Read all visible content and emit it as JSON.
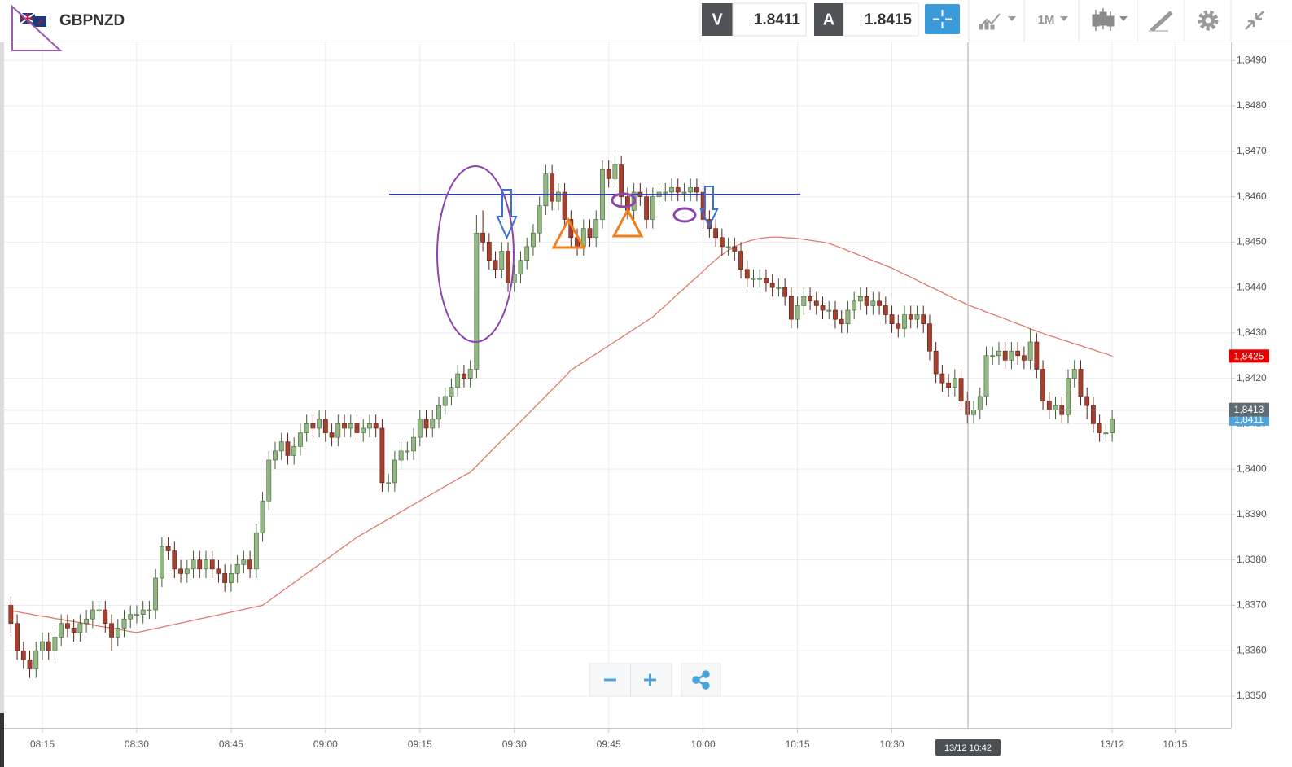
{
  "header": {
    "symbol": "GBPNZD",
    "bid_label": "V",
    "bid": "1.8411",
    "ask_label": "A",
    "ask": "1.8415",
    "timeframe": "1M"
  },
  "chart_data": {
    "type": "candlestick",
    "categories": [
      null,
      null,
      null,
      null,
      null,
      "08:15",
      null,
      null,
      null,
      null,
      null,
      null,
      null,
      null,
      null,
      null,
      null,
      null,
      null,
      null,
      "08:30",
      null,
      null,
      null,
      null,
      null,
      null,
      null,
      null,
      null,
      null,
      null,
      null,
      null,
      null,
      "08:45",
      null,
      null,
      null,
      null,
      null,
      null,
      null,
      null,
      null,
      null,
      null,
      null,
      null,
      null,
      "09:00",
      null,
      null,
      null,
      null,
      null,
      null,
      null,
      null,
      null,
      null,
      null,
      null,
      null,
      null,
      "09:15",
      null,
      null,
      null,
      null,
      null,
      null,
      null,
      null,
      null,
      null,
      null,
      null,
      null,
      null,
      "09:30",
      null,
      null,
      null,
      null,
      null,
      null,
      null,
      null,
      null,
      null,
      null,
      null,
      null,
      null,
      "09:45",
      null,
      null,
      null,
      null,
      null,
      null,
      null,
      null,
      null,
      null,
      null,
      null,
      null,
      null,
      "10:00",
      null,
      null,
      null,
      null,
      null,
      null,
      null,
      null,
      null,
      null,
      null,
      null,
      null,
      null,
      "10:15",
      null,
      null,
      null,
      null,
      null,
      null,
      null,
      null,
      null,
      null,
      null,
      null,
      null,
      null,
      "10:30",
      null,
      null,
      null,
      null,
      null,
      null,
      null,
      null,
      null,
      null,
      null,
      null,
      null,
      null,
      null,
      null,
      null,
      null,
      null,
      null,
      null,
      null,
      null,
      null,
      null,
      null,
      null,
      null,
      null,
      null,
      null,
      null,
      null,
      null,
      "13/12",
      null,
      null,
      null,
      null,
      null,
      null,
      null,
      null,
      null,
      "10:15"
    ],
    "candles": {
      "up_color": "#93b883",
      "down_color": "#a4402f",
      "last_color": "#4fa3d9",
      "last_label": "1,8411",
      "open": [
        1.837,
        1.8366,
        1.836,
        1.8358,
        1.8356,
        1.836,
        1.8362,
        1.836,
        1.8363,
        1.8366,
        1.8365,
        1.8364,
        1.8366,
        1.8367,
        1.8369,
        1.8369,
        1.8366,
        1.8363,
        1.8365,
        1.8367,
        1.8368,
        1.8368,
        1.8369,
        1.8369,
        1.8376,
        1.8383,
        1.8382,
        1.8378,
        1.8377,
        1.8378,
        1.838,
        1.8378,
        1.838,
        1.8378,
        1.8377,
        1.8375,
        1.8377,
        1.8379,
        1.838,
        1.8378,
        1.8386,
        1.8393,
        1.8402,
        1.8404,
        1.8406,
        1.8403,
        1.8405,
        1.8408,
        1.841,
        1.8409,
        1.8411,
        1.8408,
        1.8407,
        1.841,
        1.8409,
        1.841,
        1.8408,
        1.8409,
        1.841,
        1.8409,
        1.8397,
        1.8397,
        1.8402,
        1.8404,
        1.8404,
        1.8407,
        1.8411,
        1.8409,
        1.8411,
        1.8414,
        1.8416,
        1.8418,
        1.8421,
        1.842,
        1.8422,
        1.8452,
        1.845,
        1.8446,
        1.8444,
        1.8448,
        1.8441,
        1.8443,
        1.8446,
        1.8449,
        1.8452,
        1.8458,
        1.8465,
        1.8459,
        1.8461,
        1.8455,
        1.8451,
        1.8449,
        1.8453,
        1.8451,
        1.8455,
        1.8466,
        1.8464,
        1.8467,
        1.846,
        1.8457,
        1.8461,
        1.846,
        1.8455,
        1.846,
        1.8461,
        1.8461,
        1.8462,
        1.8461,
        1.8461,
        1.8462,
        1.8461,
        1.8455,
        1.8453,
        1.8451,
        1.8449,
        1.8449,
        1.8448,
        1.8444,
        1.8442,
        1.8442,
        1.8442,
        1.8441,
        1.844,
        1.844,
        1.8438,
        1.8433,
        1.8436,
        1.8438,
        1.8437,
        1.8436,
        1.8435,
        1.8435,
        1.8433,
        1.8432,
        1.8435,
        1.8437,
        1.8438,
        1.8436,
        1.8437,
        1.8436,
        1.8434,
        1.8432,
        1.8431,
        1.8434,
        1.8433,
        1.8434,
        1.8432,
        1.8426,
        1.8421,
        1.8419,
        1.8418,
        1.842,
        1.8415,
        1.8412,
        1.8413,
        1.8416,
        1.8425,
        1.8425,
        1.8426,
        1.8424,
        1.8426,
        1.8425,
        1.8424,
        1.8428,
        1.8422,
        1.8415,
        1.8413,
        1.8414,
        1.8412,
        1.842,
        1.8422,
        1.8416,
        1.8414,
        1.841,
        1.8408,
        1.8408,
        null,
        null,
        null,
        null,
        null,
        null,
        null,
        null,
        null,
        null
      ],
      "high": [
        1.8372,
        1.8368,
        1.8362,
        1.836,
        1.8362,
        1.8364,
        1.8364,
        1.8365,
        1.8368,
        1.8368,
        1.8367,
        1.8368,
        1.8369,
        1.8371,
        1.8371,
        1.8371,
        1.8368,
        1.8367,
        1.8369,
        1.837,
        1.837,
        1.8371,
        1.8371,
        1.8378,
        1.8385,
        1.8385,
        1.8384,
        1.838,
        1.838,
        1.8382,
        1.8382,
        1.8382,
        1.8382,
        1.838,
        1.8379,
        1.8379,
        1.8381,
        1.8382,
        1.8382,
        1.8388,
        1.8395,
        1.8404,
        1.8406,
        1.8408,
        1.8408,
        1.8407,
        1.841,
        1.8412,
        1.8412,
        1.8413,
        1.8413,
        1.841,
        1.8412,
        1.8412,
        1.8412,
        1.8412,
        1.8411,
        1.8412,
        1.8412,
        1.8411,
        1.8399,
        1.8404,
        1.8406,
        1.8406,
        1.8409,
        1.8413,
        1.8413,
        1.8413,
        1.8416,
        1.8418,
        1.842,
        1.8423,
        1.8423,
        1.8424,
        1.8456,
        1.8457,
        1.8452,
        1.8448,
        1.845,
        1.845,
        1.8445,
        1.8448,
        1.8451,
        1.8454,
        1.846,
        1.8467,
        1.8467,
        1.8463,
        1.8463,
        1.8457,
        1.8453,
        1.8455,
        1.8455,
        1.8457,
        1.8468,
        1.8468,
        1.8469,
        1.8469,
        1.8462,
        1.8463,
        1.8463,
        1.8462,
        1.8462,
        1.8463,
        1.8463,
        1.8464,
        1.8464,
        1.8463,
        1.8464,
        1.8464,
        1.8463,
        1.8457,
        1.8455,
        1.8453,
        1.8451,
        1.8451,
        1.845,
        1.8446,
        1.8444,
        1.8444,
        1.8444,
        1.8443,
        1.8442,
        1.8442,
        1.844,
        1.8438,
        1.844,
        1.844,
        1.8439,
        1.8438,
        1.8437,
        1.8437,
        1.8435,
        1.8437,
        1.8439,
        1.844,
        1.844,
        1.8439,
        1.8439,
        1.8438,
        1.8436,
        1.8434,
        1.8436,
        1.8436,
        1.8436,
        1.8436,
        1.8434,
        1.8428,
        1.8423,
        1.8421,
        1.8422,
        1.8422,
        1.8417,
        1.8415,
        1.8418,
        1.8427,
        1.8427,
        1.8428,
        1.8428,
        1.8428,
        1.8428,
        1.8427,
        1.8431,
        1.843,
        1.8424,
        1.8417,
        1.8416,
        1.8416,
        1.8422,
        1.8424,
        1.8424,
        1.8418,
        1.8416,
        1.8412,
        1.841,
        1.8413,
        null,
        null,
        null,
        null,
        null,
        null,
        null,
        null,
        null,
        null
      ],
      "low": [
        1.8364,
        1.8358,
        1.8356,
        1.8354,
        1.8354,
        1.8358,
        1.8358,
        1.8358,
        1.8361,
        1.8363,
        1.8362,
        1.8362,
        1.8364,
        1.8365,
        1.8367,
        1.8364,
        1.836,
        1.8361,
        1.8363,
        1.8365,
        1.8366,
        1.8366,
        1.8367,
        1.8367,
        1.8374,
        1.838,
        1.8376,
        1.8375,
        1.8375,
        1.8376,
        1.8376,
        1.8376,
        1.8376,
        1.8375,
        1.8373,
        1.8373,
        1.8375,
        1.8377,
        1.8376,
        1.8376,
        1.8384,
        1.8391,
        1.84,
        1.8402,
        1.8401,
        1.8401,
        1.8403,
        1.8406,
        1.8407,
        1.8407,
        1.8406,
        1.8405,
        1.8405,
        1.8407,
        1.8407,
        1.8406,
        1.8406,
        1.8407,
        1.8407,
        1.8395,
        1.8395,
        1.8395,
        1.84,
        1.8402,
        1.8402,
        1.8405,
        1.8407,
        1.8407,
        1.8409,
        1.8412,
        1.8414,
        1.8416,
        1.8418,
        1.8418,
        1.842,
        1.8448,
        1.8444,
        1.8442,
        1.8442,
        1.8439,
        1.8439,
        1.8441,
        1.8444,
        1.8447,
        1.845,
        1.8456,
        1.8457,
        1.8457,
        1.8453,
        1.8449,
        1.8447,
        1.8447,
        1.8449,
        1.8449,
        1.8453,
        1.8462,
        1.8462,
        1.8458,
        1.8455,
        1.8455,
        1.8458,
        1.8453,
        1.8453,
        1.8458,
        1.8459,
        1.8459,
        1.8459,
        1.8459,
        1.8459,
        1.8459,
        1.8453,
        1.8451,
        1.8449,
        1.8447,
        1.8447,
        1.8446,
        1.8442,
        1.844,
        1.844,
        1.844,
        1.8439,
        1.8438,
        1.8438,
        1.8436,
        1.8431,
        1.8431,
        1.8434,
        1.8435,
        1.8434,
        1.8433,
        1.8433,
        1.8431,
        1.843,
        1.843,
        1.8433,
        1.8435,
        1.8434,
        1.8434,
        1.8434,
        1.8432,
        1.843,
        1.8429,
        1.8429,
        1.8431,
        1.8431,
        1.843,
        1.8424,
        1.8419,
        1.8417,
        1.8416,
        1.8416,
        1.8413,
        1.841,
        1.841,
        1.8411,
        1.8414,
        1.8423,
        1.8423,
        1.8422,
        1.8422,
        1.8423,
        1.8422,
        1.8422,
        1.842,
        1.8413,
        1.8411,
        1.8411,
        1.841,
        1.841,
        1.8418,
        1.8414,
        1.8411,
        1.8408,
        1.8406,
        1.8406,
        1.8406,
        null,
        null,
        null,
        null,
        null,
        null,
        null,
        null,
        null,
        null
      ],
      "close": [
        1.8366,
        1.836,
        1.8358,
        1.8356,
        1.836,
        1.8362,
        1.836,
        1.8363,
        1.8366,
        1.8365,
        1.8364,
        1.8366,
        1.8367,
        1.8369,
        1.8369,
        1.8366,
        1.8363,
        1.8365,
        1.8367,
        1.8368,
        1.8368,
        1.8369,
        1.8369,
        1.8376,
        1.8383,
        1.8382,
        1.8378,
        1.8377,
        1.8378,
        1.838,
        1.8378,
        1.838,
        1.8378,
        1.8377,
        1.8375,
        1.8377,
        1.8379,
        1.838,
        1.8378,
        1.8386,
        1.8393,
        1.8402,
        1.8404,
        1.8406,
        1.8403,
        1.8405,
        1.8408,
        1.841,
        1.8409,
        1.8411,
        1.8408,
        1.8407,
        1.841,
        1.8409,
        1.841,
        1.8408,
        1.8409,
        1.841,
        1.8409,
        1.8397,
        1.8397,
        1.8402,
        1.8404,
        1.8404,
        1.8407,
        1.8411,
        1.8409,
        1.8411,
        1.8414,
        1.8416,
        1.8418,
        1.8421,
        1.842,
        1.8422,
        1.8452,
        1.845,
        1.8446,
        1.8444,
        1.8448,
        1.8441,
        1.8443,
        1.8446,
        1.8449,
        1.8452,
        1.8458,
        1.8465,
        1.8459,
        1.8461,
        1.8455,
        1.8451,
        1.8449,
        1.8453,
        1.8451,
        1.8455,
        1.8466,
        1.8464,
        1.8467,
        1.846,
        1.8457,
        1.8461,
        1.846,
        1.8455,
        1.846,
        1.8461,
        1.8461,
        1.8462,
        1.8461,
        1.8461,
        1.8462,
        1.8461,
        1.8455,
        1.8453,
        1.8451,
        1.8449,
        1.8449,
        1.8448,
        1.8444,
        1.8442,
        1.8442,
        1.8442,
        1.8441,
        1.844,
        1.844,
        1.8438,
        1.8433,
        1.8436,
        1.8438,
        1.8437,
        1.8436,
        1.8435,
        1.8435,
        1.8433,
        1.8432,
        1.8435,
        1.8437,
        1.8438,
        1.8436,
        1.8437,
        1.8436,
        1.8434,
        1.8432,
        1.8431,
        1.8434,
        1.8433,
        1.8434,
        1.8432,
        1.8426,
        1.8421,
        1.8419,
        1.8418,
        1.842,
        1.8415,
        1.8412,
        1.8413,
        1.8416,
        1.8425,
        1.8425,
        1.8426,
        1.8424,
        1.8426,
        1.8425,
        1.8424,
        1.8428,
        1.8422,
        1.8415,
        1.8413,
        1.8414,
        1.8412,
        1.842,
        1.8422,
        1.8416,
        1.8414,
        1.841,
        1.8408,
        1.8408,
        1.8411,
        null,
        null,
        null,
        null,
        null,
        null,
        null,
        null,
        null,
        null
      ]
    },
    "moving_average": {
      "color": "#e07a6e",
      "badge_color": "#e60000",
      "last_label": "1,8425",
      "values": [
        1.83688,
        1.83686,
        1.83683,
        1.83681,
        1.83678,
        1.83676,
        1.83674,
        1.83671,
        1.83669,
        1.83666,
        1.83664,
        1.83662,
        1.83659,
        1.83657,
        1.83654,
        1.83652,
        1.8365,
        1.83647,
        1.83645,
        1.83642,
        1.8364,
        1.83643,
        1.83646,
        1.83649,
        1.83652,
        1.83655,
        1.83658,
        1.83661,
        1.83664,
        1.83667,
        1.8367,
        1.83673,
        1.83676,
        1.83679,
        1.83682,
        1.83685,
        1.83688,
        1.83691,
        1.83694,
        1.83697,
        1.837,
        1.8371,
        1.8372,
        1.8373,
        1.8374,
        1.8375,
        1.8376,
        1.8377,
        1.8378,
        1.8379,
        1.838,
        1.8381,
        1.8382,
        1.8383,
        1.8384,
        1.8385,
        1.83858,
        1.83866,
        1.83874,
        1.83882,
        1.8389,
        1.83898,
        1.83906,
        1.83914,
        1.83922,
        1.8393,
        1.83938,
        1.83946,
        1.83954,
        1.83962,
        1.8397,
        1.83978,
        1.83986,
        1.83993,
        1.84007,
        1.84021,
        1.84035,
        1.84049,
        1.84063,
        1.84077,
        1.84091,
        1.84105,
        1.84119,
        1.84133,
        1.84147,
        1.84161,
        1.84175,
        1.84189,
        1.84203,
        1.84218,
        1.84227,
        1.84236,
        1.84245,
        1.84254,
        1.84263,
        1.84272,
        1.84281,
        1.8429,
        1.84299,
        1.84308,
        1.84317,
        1.84326,
        1.84335,
        1.84348,
        1.8436,
        1.84373,
        1.84386,
        1.84398,
        1.84411,
        1.84423,
        1.84436,
        1.84449,
        1.84461,
        1.84472,
        1.84482,
        1.8449,
        1.84496,
        1.84501,
        1.84505,
        1.84508,
        1.8451,
        1.84511,
        1.84511,
        1.8451,
        1.84509,
        1.84508,
        1.84506,
        1.84504,
        1.84502,
        1.845,
        1.84497,
        1.84492,
        1.84487,
        1.84481,
        1.84476,
        1.8447,
        1.84465,
        1.84459,
        1.84454,
        1.84448,
        1.84443,
        1.84436,
        1.84429,
        1.84423,
        1.84416,
        1.84409,
        1.84402,
        1.84396,
        1.84389,
        1.84382,
        1.84375,
        1.84369,
        1.84362,
        1.84357,
        1.84352,
        1.84346,
        1.84341,
        1.84336,
        1.84331,
        1.84325,
        1.8432,
        1.84315,
        1.84309,
        1.84304,
        1.84299,
        1.84294,
        1.8429,
        1.84285,
        1.84281,
        1.84276,
        1.84272,
        1.84267,
        1.84263,
        1.84258,
        1.84254,
        1.84249,
        null,
        null,
        null,
        null,
        null,
        null,
        null,
        null,
        null,
        null
      ]
    },
    "crosshair": {
      "x_label": "13/12 10:42",
      "y": {
        "value": 1.8413,
        "label": "1,8413"
      }
    },
    "ylim": [
      1.8343,
      1.8494
    ],
    "yticks": [
      {
        "value": 1.835,
        "label": "1,8350"
      },
      {
        "value": 1.836,
        "label": "1,8360"
      },
      {
        "value": 1.837,
        "label": "1,8370"
      },
      {
        "value": 1.838,
        "label": "1,8380"
      },
      {
        "value": 1.839,
        "label": "1,8390"
      },
      {
        "value": 1.84,
        "label": "1,8400"
      },
      {
        "value": 1.841,
        "label": "1,8410"
      },
      {
        "value": 1.842,
        "label": "1,8420"
      },
      {
        "value": 1.843,
        "label": "1,8430"
      },
      {
        "value": 1.844,
        "label": "1,8440"
      },
      {
        "value": 1.845,
        "label": "1,8450"
      },
      {
        "value": 1.846,
        "label": "1,8460"
      },
      {
        "value": 1.847,
        "label": "1,8470"
      },
      {
        "value": 1.848,
        "label": "1,8480"
      },
      {
        "value": 1.849,
        "label": "1,8490"
      }
    ],
    "grid": true
  }
}
